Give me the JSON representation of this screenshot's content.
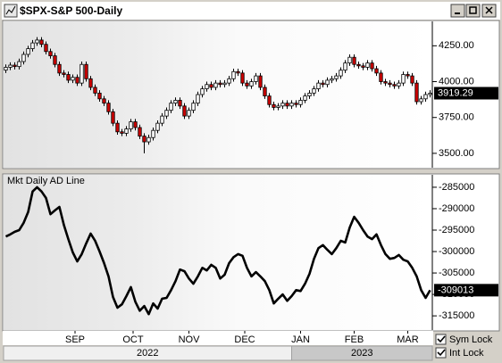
{
  "chart_data": [
    {
      "type": "candlestick",
      "title": "$SPX-S&P 500-Daily",
      "up_color": "#ffffff",
      "down_color": "#cc0000",
      "xlim": [
        -0.5,
        95.5
      ],
      "ylim": [
        3400,
        4420
      ],
      "yticks": [
        {
          "value": 3500,
          "label": "3500.00"
        },
        {
          "value": 3750,
          "label": "3750.00"
        },
        {
          "value": 4000,
          "label": "4000.00"
        },
        {
          "value": 4250,
          "label": "4250.00"
        }
      ],
      "open": [
        4080,
        4100,
        4115,
        4105,
        4140,
        4190,
        4230,
        4270,
        4290,
        4260,
        4210,
        4180,
        4120,
        4060,
        4050,
        4010,
        4030,
        3990,
        4120,
        4020,
        3960,
        3920,
        3880,
        3850,
        3790,
        3710,
        3650,
        3640,
        3670,
        3720,
        3680,
        3620,
        3580,
        3610,
        3660,
        3710,
        3760,
        3800,
        3850,
        3870,
        3830,
        3760,
        3800,
        3850,
        3910,
        3950,
        3980,
        3960,
        3990,
        3980,
        3990,
        4020,
        4070,
        4060,
        3990,
        3970,
        4000,
        4040,
        3960,
        3900,
        3840,
        3820,
        3830,
        3850,
        3830,
        3850,
        3840,
        3870,
        3900,
        3920,
        3950,
        3990,
        3980,
        4010,
        4020,
        4040,
        4080,
        4130,
        4170,
        4120,
        4110,
        4100,
        4130,
        4090,
        4060,
        4000,
        3990,
        3980,
        3970,
        3990,
        4050,
        4040,
        3990,
        3860,
        3880,
        3910
      ],
      "high": [
        4120,
        4135,
        4135,
        4160,
        4210,
        4250,
        4290,
        4310,
        4310,
        4280,
        4230,
        4200,
        4140,
        4080,
        4070,
        4050,
        4050,
        4140,
        4140,
        4040,
        3980,
        3940,
        3900,
        3870,
        3810,
        3730,
        3670,
        3690,
        3740,
        3740,
        3700,
        3640,
        3630,
        3680,
        3730,
        3780,
        3820,
        3870,
        3890,
        3890,
        3850,
        3820,
        3870,
        3930,
        3970,
        4000,
        4000,
        4010,
        4010,
        4010,
        4040,
        4090,
        4090,
        4080,
        4010,
        4020,
        4060,
        4060,
        3980,
        3920,
        3860,
        3850,
        3870,
        3870,
        3870,
        3870,
        3890,
        3920,
        3940,
        3970,
        4010,
        4010,
        4030,
        4040,
        4060,
        4100,
        4150,
        4190,
        4190,
        4140,
        4130,
        4150,
        4150,
        4110,
        4080,
        4020,
        4010,
        4000,
        4010,
        4070,
        4070,
        4060,
        4010,
        3900,
        3930,
        3940
      ],
      "low": [
        4060,
        4080,
        4085,
        4085,
        4120,
        4170,
        4210,
        4250,
        4240,
        4190,
        4160,
        4100,
        4040,
        4030,
        3990,
        3990,
        3970,
        3970,
        4000,
        3940,
        3900,
        3860,
        3830,
        3770,
        3690,
        3630,
        3620,
        3620,
        3650,
        3660,
        3600,
        3500,
        3560,
        3590,
        3640,
        3690,
        3740,
        3780,
        3830,
        3810,
        3740,
        3740,
        3780,
        3830,
        3890,
        3930,
        3940,
        3940,
        3960,
        3960,
        3970,
        4000,
        4040,
        3970,
        3950,
        3950,
        3980,
        3940,
        3880,
        3820,
        3800,
        3800,
        3810,
        3810,
        3810,
        3820,
        3820,
        3850,
        3880,
        3900,
        3930,
        3960,
        3960,
        3990,
        4000,
        4020,
        4060,
        4110,
        4100,
        4090,
        4080,
        4080,
        4070,
        4040,
        3980,
        3970,
        3960,
        3950,
        3950,
        3970,
        4020,
        3970,
        3840,
        3840,
        3860,
        3890
      ],
      "close": [
        4100,
        4115,
        4105,
        4140,
        4190,
        4230,
        4270,
        4290,
        4260,
        4210,
        4180,
        4120,
        4060,
        4050,
        4010,
        4030,
        3990,
        4120,
        4020,
        3960,
        3920,
        3880,
        3850,
        3790,
        3710,
        3650,
        3640,
        3670,
        3720,
        3680,
        3620,
        3580,
        3610,
        3660,
        3710,
        3760,
        3800,
        3850,
        3870,
        3830,
        3760,
        3800,
        3850,
        3910,
        3950,
        3980,
        3960,
        3990,
        3980,
        3990,
        4020,
        4070,
        4060,
        3990,
        3970,
        4000,
        4040,
        3960,
        3900,
        3840,
        3820,
        3830,
        3850,
        3830,
        3850,
        3840,
        3870,
        3900,
        3920,
        3950,
        3990,
        3980,
        4010,
        4020,
        4040,
        4080,
        4130,
        4170,
        4120,
        4110,
        4100,
        4130,
        4090,
        4060,
        4000,
        3990,
        3980,
        3970,
        3990,
        4050,
        4040,
        3990,
        3860,
        3880,
        3910,
        3919.29
      ]
    },
    {
      "type": "line",
      "title": "Mkt Daily AD Line",
      "color": "#000000",
      "xlim": [
        -0.5,
        95.5
      ],
      "ylim": [
        -318300,
        -282100
      ],
      "yticks": [
        -315000,
        -310000,
        -305000,
        -300000,
        -295000,
        -290000,
        -285000
      ],
      "values": [
        -296500,
        -296000,
        -295400,
        -295000,
        -293300,
        -290800,
        -286000,
        -285000,
        -286000,
        -287500,
        -291300,
        -290400,
        -289600,
        -293800,
        -297100,
        -300200,
        -302300,
        -300600,
        -298100,
        -295800,
        -297500,
        -300000,
        -302700,
        -305800,
        -310600,
        -313100,
        -312300,
        -310400,
        -308300,
        -311700,
        -313800,
        -312700,
        -314600,
        -312100,
        -313300,
        -311000,
        -310800,
        -309000,
        -306900,
        -304200,
        -304600,
        -306300,
        -307500,
        -305800,
        -303800,
        -304400,
        -303100,
        -303800,
        -306300,
        -305400,
        -302700,
        -301300,
        -300600,
        -301000,
        -303800,
        -305800,
        -304800,
        -305800,
        -306900,
        -309000,
        -312100,
        -311000,
        -310000,
        -311500,
        -310400,
        -309000,
        -309200,
        -307500,
        -305200,
        -301700,
        -299200,
        -298500,
        -299600,
        -300600,
        -299200,
        -297500,
        -297900,
        -294400,
        -291900,
        -293300,
        -295000,
        -296500,
        -297100,
        -296000,
        -298500,
        -300600,
        -301700,
        -301500,
        -300800,
        -301900,
        -302300,
        -303800,
        -305800,
        -309000,
        -310800,
        -309013
      ],
      "xticks": [
        {
          "value": 15.5,
          "label": "SEP"
        },
        {
          "value": 28.5,
          "label": "OCT"
        },
        {
          "value": 41,
          "label": "NOV"
        },
        {
          "value": 53.5,
          "label": "DEC"
        },
        {
          "value": 66,
          "label": "JAN"
        },
        {
          "value": 78,
          "label": "FEB"
        },
        {
          "value": 90,
          "label": "MAR"
        }
      ],
      "year_bands": [
        {
          "label": "2022",
          "from": -0.5,
          "to": 64
        },
        {
          "label": "2023",
          "from": 64,
          "to": 95.5
        }
      ]
    }
  ],
  "controls": [
    {
      "label": "Sym Lock",
      "checked": true
    },
    {
      "label": "Int Lock",
      "checked": true
    }
  ]
}
